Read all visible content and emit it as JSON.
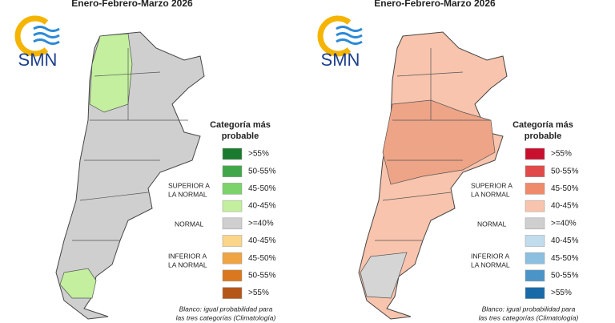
{
  "panels": [
    {
      "title": "Enero-Febrero-Marzo 2026",
      "logo": "SMN",
      "legend": {
        "title_1": "Categoría más",
        "title_2": "probable",
        "items": [
          {
            "label": ">55%",
            "color": "#1a7a2e"
          },
          {
            "label": "50-55%",
            "color": "#41a84a"
          },
          {
            "label": "45-50%",
            "color": "#7bd36a"
          },
          {
            "label": "40-45%",
            "color": "#c3ef9e"
          },
          {
            "label": ">=40%",
            "color": "#cfcfcf"
          },
          {
            "label": "40-45%",
            "color": "#fbd58a"
          },
          {
            "label": "45-50%",
            "color": "#f0a443"
          },
          {
            "label": "50-55%",
            "color": "#d9781e"
          },
          {
            "label": ">55%",
            "color": "#b5561a"
          }
        ],
        "superior_1": "SUPERIOR A",
        "superior_2": "LA NORMAL",
        "normal": "NORMAL",
        "inferior_1": "INFERIOR A",
        "inferior_2": "LA NORMAL"
      },
      "note_1": "Blanco: igual probabilidad para",
      "note_2": "las tres categorías (Climatología)"
    },
    {
      "title": "Enero-Febrero-Marzo 2026",
      "logo": "SMN",
      "legend": {
        "title_1": "Categoría más",
        "title_2": "probable",
        "items": [
          {
            "label": ">55%",
            "color": "#c8102e"
          },
          {
            "label": "50-55%",
            "color": "#e04a4a"
          },
          {
            "label": "45-50%",
            "color": "#ef8a6a"
          },
          {
            "label": "40-45%",
            "color": "#f8c4ad"
          },
          {
            "label": ">=40%",
            "color": "#cfcfcf"
          },
          {
            "label": "40-45%",
            "color": "#c0dced"
          },
          {
            "label": "45-50%",
            "color": "#8dbfe0"
          },
          {
            "label": "50-55%",
            "color": "#4a94c8"
          },
          {
            "label": ">55%",
            "color": "#1a6aa8"
          }
        ],
        "superior_1": "SUPERIOR A",
        "superior_2": "LA NORMAL",
        "normal": "NORMAL",
        "inferior_1": "INFERIOR A",
        "inferior_2": "LA NORMAL"
      },
      "note_1": "Blanco: igual probabilidad para",
      "note_2": "las tres categorías (Climatología)"
    }
  ]
}
